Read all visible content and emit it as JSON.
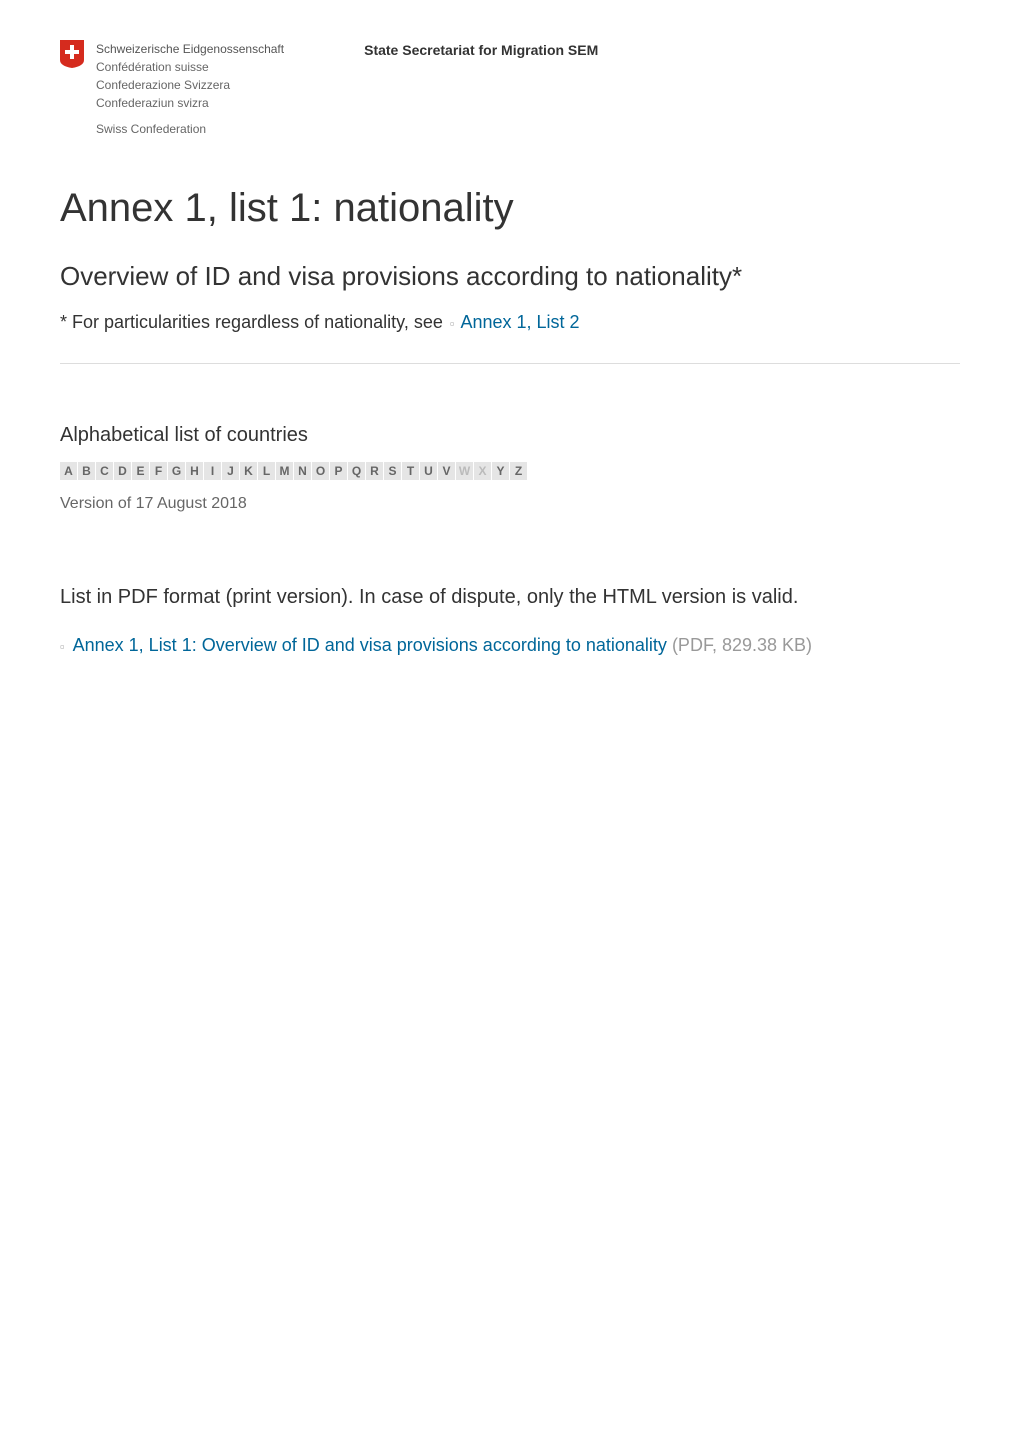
{
  "header": {
    "lang_lines": [
      "Schweizerische Eidgenossenschaft",
      "Confédération suisse",
      "Confederazione Svizzera",
      "Confederaziun svizra"
    ],
    "confederation": "Swiss Confederation",
    "org": "State Secretariat for Migration SEM"
  },
  "title": "Annex 1, list 1: nationality",
  "subtitle": "Overview of ID and visa provisions according to nationality*",
  "note_prefix": "* For particularities regardless of nationality, see ",
  "note_link": "Annex 1, List 2",
  "alpha_heading": "Alphabetical list of countries",
  "alpha": [
    {
      "l": "A",
      "active": true
    },
    {
      "l": "B",
      "active": true
    },
    {
      "l": "C",
      "active": true
    },
    {
      "l": "D",
      "active": true
    },
    {
      "l": "E",
      "active": true
    },
    {
      "l": "F",
      "active": true
    },
    {
      "l": "G",
      "active": true
    },
    {
      "l": "H",
      "active": true
    },
    {
      "l": "I",
      "active": true
    },
    {
      "l": "J",
      "active": true
    },
    {
      "l": "K",
      "active": true
    },
    {
      "l": "L",
      "active": true
    },
    {
      "l": "M",
      "active": true
    },
    {
      "l": "N",
      "active": true
    },
    {
      "l": "O",
      "active": true
    },
    {
      "l": "P",
      "active": true
    },
    {
      "l": "Q",
      "active": true
    },
    {
      "l": "R",
      "active": true
    },
    {
      "l": "S",
      "active": true
    },
    {
      "l": "T",
      "active": true
    },
    {
      "l": "U",
      "active": true
    },
    {
      "l": "V",
      "active": true
    },
    {
      "l": "W",
      "active": false
    },
    {
      "l": "X",
      "active": false
    },
    {
      "l": "Y",
      "active": true
    },
    {
      "l": "Z",
      "active": true
    }
  ],
  "version": "Version of 17 August 2018",
  "pdf_heading": "List in PDF format (print version). In case of dispute, only the HTML version is valid.",
  "pdf_link_text": "Annex 1, List 1: Overview of ID and visa provisions according to nationality",
  "pdf_meta": " (PDF, 829.38 KB)",
  "colors": {
    "link": "#006699",
    "text": "#333333",
    "muted": "#666666",
    "light": "#999999",
    "alpha_bg": "#e5e5e5",
    "divider": "#dddddd",
    "shield_red": "#d52b1e"
  }
}
